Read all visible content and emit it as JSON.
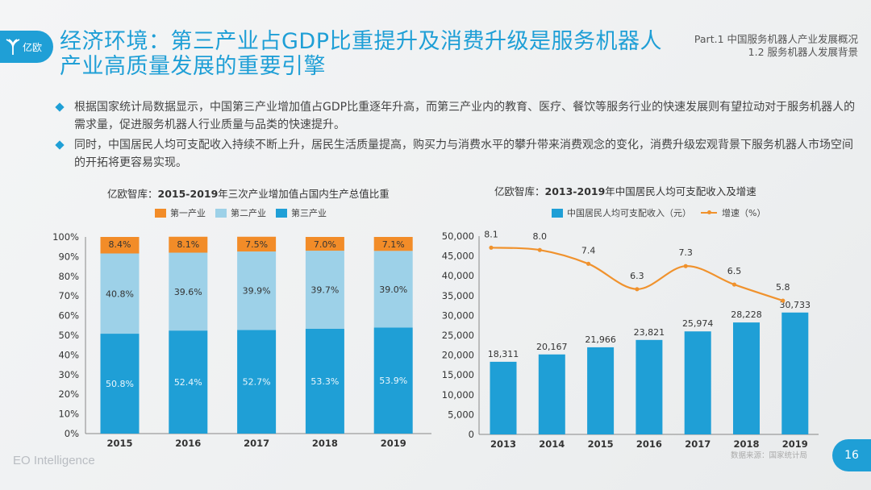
{
  "header": {
    "logo_text": "亿欧",
    "title_line1": "经济环境：第三产业占GDP比重提升及消费升级是服务机器人",
    "title_line2": "产业高质量发展的重要引擎",
    "part_line1": "Part.1 中国服务机器人产业发展概况",
    "part_line2": "1.2 服务机器人发展背景"
  },
  "bullets": [
    "根据国家统计局数据显示，中国第三产业增加值占GDP比重逐年升高，而第三产业内的教育、医疗、餐饮等服务行业的快速发展则有望拉动对于服务机器人的需求量，促进服务机器人行业质量与品类的快速提升。",
    "同时，中国居民人均可支配收入持续不断上升，居民生活质量提高，购买力与消费水平的攀升带来消费观念的变化，消费升级宏观背景下服务机器人市场空间的开拓将更容易实现。"
  ],
  "footer": {
    "brand": "EO Intelligence",
    "source": "数据来源：国家统计局",
    "page": "16"
  },
  "chart_data": [
    {
      "type": "bar",
      "stacked": true,
      "title_prefix": "亿欧智库：",
      "title_bold": "2015-2019",
      "title_rest": "年三次产业增加值占国内生产总值比重",
      "categories": [
        "2015",
        "2016",
        "2017",
        "2018",
        "2019"
      ],
      "series": [
        {
          "name": "第三产业",
          "color": "#1f9fd6",
          "values": [
            50.8,
            52.4,
            52.7,
            53.3,
            53.9
          ],
          "labels": [
            "50.8%",
            "52.4%",
            "52.7%",
            "53.3%",
            "53.9%"
          ]
        },
        {
          "name": "第二产业",
          "color": "#9dd1e8",
          "values": [
            40.8,
            39.6,
            39.9,
            39.7,
            39.0
          ],
          "labels": [
            "40.8%",
            "39.6%",
            "39.9%",
            "39.7%",
            "39.0%"
          ]
        },
        {
          "name": "第一产业",
          "color": "#f28c28",
          "values": [
            8.4,
            8.1,
            7.5,
            7.0,
            7.1
          ],
          "labels": [
            "8.4%",
            "8.1%",
            "7.5%",
            "7.0%",
            "7.1%"
          ]
        }
      ],
      "legend": [
        "第一产业",
        "第二产业",
        "第三产业"
      ],
      "legend_colors": [
        "#f28c28",
        "#9dd1e8",
        "#1f9fd6"
      ],
      "yticks": [
        "0%",
        "10%",
        "20%",
        "30%",
        "40%",
        "50%",
        "60%",
        "70%",
        "80%",
        "90%",
        "100%"
      ],
      "ylim": [
        0,
        100
      ],
      "xlabel": "",
      "ylabel": "",
      "legend_position": "top"
    },
    {
      "type": "bar+line",
      "title_prefix": "亿欧智库：",
      "title_bold": "2013-2019",
      "title_rest": "年中国居民人均可支配收入及增速",
      "categories": [
        "2013",
        "2014",
        "2015",
        "2016",
        "2017",
        "2018",
        "2019"
      ],
      "series": [
        {
          "name": "中国居民人均可支配收入（元）",
          "type": "bar",
          "color": "#1f9fd6",
          "values": [
            18311,
            20167,
            21966,
            23821,
            25974,
            28228,
            30733
          ],
          "labels": [
            "18,311",
            "20,167",
            "21,966",
            "23,821",
            "25,974",
            "28,228",
            "30,733"
          ]
        },
        {
          "name": "增速（%）",
          "type": "line",
          "color": "#f0922d",
          "values": [
            8.1,
            8.0,
            7.4,
            6.3,
            7.3,
            6.5,
            5.8
          ],
          "labels": [
            "8.1",
            "8.0",
            "7.4",
            "6.3",
            "7.3",
            "6.5",
            "5.8"
          ],
          "axis": "secondary-hidden"
        }
      ],
      "yticks": [
        "0",
        "5,000",
        "10,000",
        "15,000",
        "20,000",
        "25,000",
        "30,000",
        "35,000",
        "40,000",
        "45,000",
        "50,000"
      ],
      "ylim": [
        0,
        50000
      ],
      "y2lim": [
        0,
        8.6
      ],
      "xlabel": "",
      "ylabel": "",
      "legend_position": "top"
    }
  ]
}
